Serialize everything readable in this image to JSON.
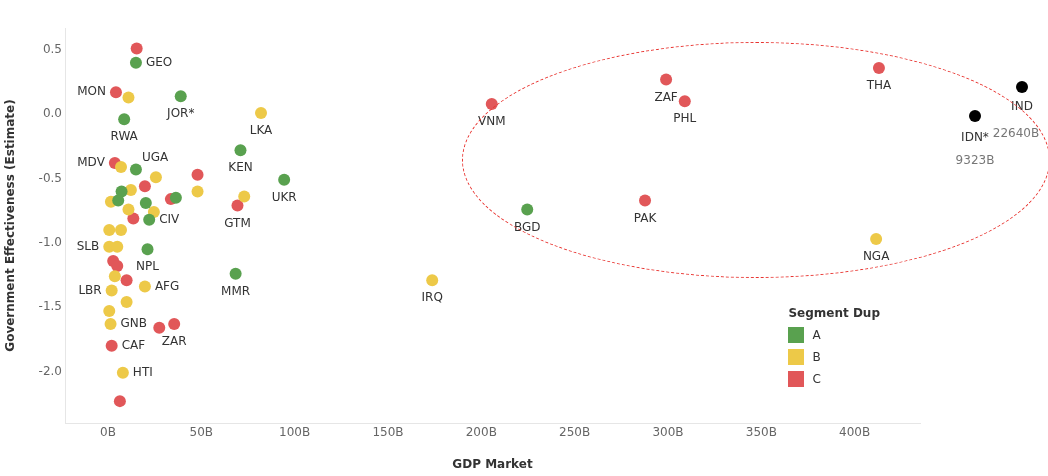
{
  "chart_data": [
    {
      "type": "scatter",
      "xlabel": "GDP Market",
      "ylabel": "Government Effectiveness (Estimate)",
      "legend_title": "Segment Dup",
      "legend": "bottom right",
      "marker": "circle",
      "grid": false,
      "xlim": [
        -23,
        435
      ],
      "xticks": [
        {
          "value": 0,
          "label": "0B"
        },
        {
          "value": 50,
          "label": "50B"
        },
        {
          "value": 100,
          "label": "100B"
        },
        {
          "value": 150,
          "label": "150B"
        },
        {
          "value": 200,
          "label": "200B"
        },
        {
          "value": 250,
          "label": "250B"
        },
        {
          "value": 300,
          "label": "300B"
        },
        {
          "value": 350,
          "label": "350B"
        },
        {
          "value": 400,
          "label": "400B"
        }
      ],
      "ylim": [
        -2.4,
        0.67
      ],
      "yticks": [
        0.5,
        {
          "value": 0,
          "label": "0.0"
        },
        -0.5,
        {
          "value": -1,
          "label": "-1.0"
        },
        -1.5,
        {
          "value": -2,
          "label": "-2.0"
        }
      ],
      "series": [
        {
          "name": "A",
          "color": "#59a14f",
          "x": [
            15,
            39,
            8.7,
            71,
            15,
            94.4,
            7.3,
            5.5,
            36.4,
            20.3,
            22.1,
            21.2,
            68.4,
            224.6
          ],
          "values": [
            0.4,
            0.14,
            -0.04,
            -0.28,
            -0.43,
            -0.51,
            -0.6,
            -0.67,
            -0.65,
            -0.69,
            -0.82,
            -1.05,
            -1.24,
            -0.74
          ]
        },
        {
          "name": "B",
          "color": "#edc948",
          "x": [
            11,
            82,
            7,
            25.7,
            12.3,
            48,
            1.6,
            73,
            11,
            24.6,
            0.7,
            7,
            0.7,
            5,
            3.7,
            2,
            19.8,
            10,
            0.7,
            1.4,
            8,
            173.7,
            411.5
          ],
          "values": [
            0.13,
            0.01,
            -0.41,
            -0.49,
            -0.59,
            -0.6,
            -0.68,
            -0.64,
            -0.74,
            -0.76,
            -0.9,
            -0.9,
            -1.03,
            -1.03,
            -1.26,
            -1.37,
            -1.34,
            -1.46,
            -1.53,
            -1.63,
            -2.01,
            -1.29,
            -0.97
          ]
        },
        {
          "name": "C",
          "color": "#e15759",
          "x": [
            15.4,
            4.3,
            3.7,
            48,
            19.8,
            33.7,
            69.4,
            13.6,
            2.8,
            5,
            10,
            27.5,
            35.5,
            2,
            6.4,
            205.6,
            299,
            309,
            413,
            287.7
          ],
          "values": [
            0.51,
            0.17,
            -0.38,
            -0.47,
            -0.56,
            -0.66,
            -0.71,
            -0.81,
            -1.14,
            -1.18,
            -1.29,
            -1.66,
            -1.63,
            -1.8,
            -2.23,
            0.08,
            0.27,
            0.1,
            0.36,
            -0.67
          ]
        }
      ],
      "annotations": [
        {
          "text": "GEO",
          "x": 15,
          "y": 0.4
        },
        {
          "text": "MON",
          "x": 4.3,
          "y": 0.17
        },
        {
          "text": "JOR*",
          "x": 39,
          "y": 0.14
        },
        {
          "text": "RWA",
          "x": 8.7,
          "y": -0.04
        },
        {
          "text": "LKA",
          "x": 82,
          "y": 0.01
        },
        {
          "text": "KEN",
          "x": 71,
          "y": -0.28
        },
        {
          "text": "MDV",
          "x": 3.7,
          "y": -0.38
        },
        {
          "text": "UGA",
          "x": 15,
          "y": -0.43
        },
        {
          "text": "UKR",
          "x": 94.4,
          "y": -0.51
        },
        {
          "text": "CIV",
          "x": 22.1,
          "y": -0.82
        },
        {
          "text": "GTM",
          "x": 69.4,
          "y": -0.71
        },
        {
          "text": "SLB",
          "x": 0.7,
          "y": -1.03
        },
        {
          "text": "NPL",
          "x": 21.2,
          "y": -1.05
        },
        {
          "text": "LBR",
          "x": 2,
          "y": -1.37
        },
        {
          "text": "AFG",
          "x": 19.8,
          "y": -1.34
        },
        {
          "text": "MMR",
          "x": 68.4,
          "y": -1.24
        },
        {
          "text": "GNB",
          "x": 1.4,
          "y": -1.63
        },
        {
          "text": "ZAR",
          "x": 35.5,
          "y": -1.63
        },
        {
          "text": "CAF",
          "x": 2,
          "y": -1.8
        },
        {
          "text": "HTI",
          "x": 8,
          "y": -2.01
        },
        {
          "text": "VNM",
          "x": 205.6,
          "y": 0.08
        },
        {
          "text": "ZAF",
          "x": 299,
          "y": 0.27
        },
        {
          "text": "PHL",
          "x": 309,
          "y": 0.1
        },
        {
          "text": "THA",
          "x": 413,
          "y": 0.36
        },
        {
          "text": "PAK",
          "x": 287.7,
          "y": -0.67
        },
        {
          "text": "BGD",
          "x": 224.6,
          "y": -0.74
        },
        {
          "text": "NGA",
          "x": 411.5,
          "y": -0.97
        },
        {
          "text": "IRQ",
          "x": 173.7,
          "y": -1.29
        }
      ]
    },
    {
      "type": "other",
      "annotations": [
        "IDN*",
        "9323B",
        "IND",
        "22640B"
      ]
    }
  ]
}
